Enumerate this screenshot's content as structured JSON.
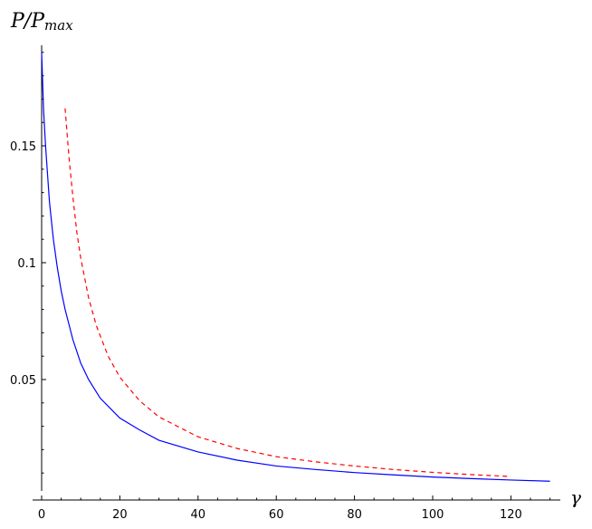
{
  "chart_data": {
    "type": "line",
    "title": "",
    "xlabel": "γ",
    "ylabel_main": "P/P",
    "ylabel_sub": "max",
    "xlim": [
      0,
      132
    ],
    "ylim": [
      0.0,
      0.19
    ],
    "grid": false,
    "legend": "none",
    "x_ticks": [
      0,
      20,
      40,
      60,
      80,
      100,
      120
    ],
    "x_tick_labels": [
      "0",
      "20",
      "40",
      "60",
      "80",
      "100",
      "120"
    ],
    "y_ticks": [
      0.05,
      0.1,
      0.15
    ],
    "y_tick_labels": [
      "0.05",
      "0.1",
      "0.15"
    ],
    "series": [
      {
        "color": "#0000ff",
        "style": "solid",
        "x": [
          0,
          0.5,
          1,
          2,
          3,
          4,
          5,
          6,
          8,
          10,
          12,
          15,
          20,
          25,
          30,
          40,
          50,
          60,
          70,
          80,
          90,
          100,
          110,
          120,
          130
        ],
        "y": [
          0.19,
          0.165,
          0.15,
          0.126,
          0.11,
          0.098,
          0.088,
          0.08,
          0.067,
          0.057,
          0.05,
          0.042,
          0.0335,
          0.0285,
          0.024,
          0.019,
          0.0155,
          0.013,
          0.0115,
          0.0102,
          0.0092,
          0.0083,
          0.0076,
          0.007,
          0.0065
        ]
      },
      {
        "color": "#ff0000",
        "style": "dashed",
        "x": [
          6,
          7,
          8,
          9,
          10,
          12,
          14,
          17,
          20,
          25,
          30,
          40,
          50,
          60,
          70,
          80,
          90,
          100,
          110,
          120
        ],
        "y": [
          0.166,
          0.145,
          0.128,
          0.113,
          0.102,
          0.085,
          0.073,
          0.06,
          0.051,
          0.041,
          0.034,
          0.0255,
          0.0205,
          0.017,
          0.0148,
          0.013,
          0.0115,
          0.0103,
          0.0093,
          0.0085
        ]
      }
    ]
  }
}
